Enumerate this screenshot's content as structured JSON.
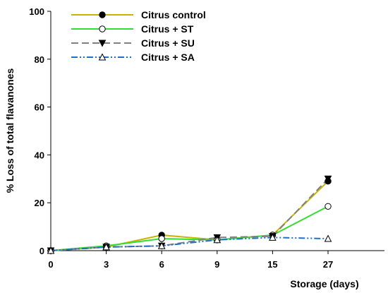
{
  "chart_data": {
    "type": "line",
    "categories": [
      "0",
      "3",
      "6",
      "9",
      "15",
      "27"
    ],
    "xlabel": "Storage (days)",
    "ylabel": "% Loss of total flavanones",
    "ylim": [
      0,
      100
    ],
    "yticks": [
      "0",
      "20",
      "40",
      "60",
      "80",
      "100"
    ],
    "grid": false,
    "legend_position": "top-left",
    "series": [
      {
        "name": "Citrus control",
        "color": "#c8b400",
        "dash": "solid",
        "marker": "filled-circle",
        "values": [
          0,
          1.5,
          6.5,
          4.5,
          6.5,
          29
        ]
      },
      {
        "name": "Citrus + ST",
        "color": "#33dd33",
        "dash": "solid",
        "marker": "open-circle",
        "values": [
          0,
          2,
          5,
          4.5,
          6.5,
          18.5
        ]
      },
      {
        "name": "Citrus + SU",
        "color": "#808080",
        "dash": "dashed",
        "marker": "filled-triangle-down",
        "values": [
          0,
          1.5,
          2,
          5.5,
          6,
          30
        ]
      },
      {
        "name": "Citrus + SA",
        "color": "#1f6fd0",
        "dash": "dashdotdot",
        "marker": "open-triangle-up",
        "values": [
          0,
          1.5,
          2,
          4.5,
          5.5,
          5
        ]
      }
    ]
  }
}
